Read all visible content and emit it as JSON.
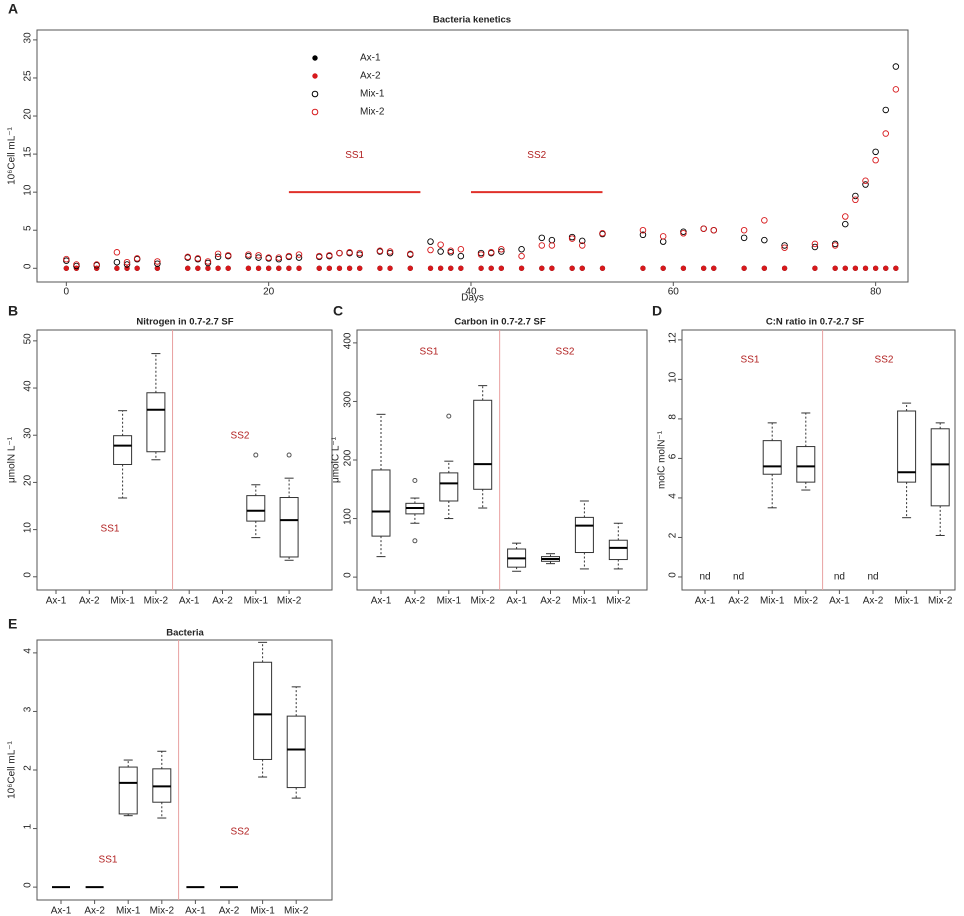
{
  "chart_data": [
    {
      "panel": "A",
      "type": "scatter",
      "title": "Bacteria kenetics",
      "xlabel": "Days",
      "ylabel": "10⁶Cell mL⁻¹",
      "x": [
        0,
        1,
        3,
        5,
        6,
        7,
        9,
        12,
        13,
        14,
        15,
        16,
        18,
        19,
        20,
        21,
        22,
        23,
        25,
        26,
        27,
        28,
        29,
        31,
        32,
        34,
        36,
        37,
        38,
        39,
        41,
        42,
        43,
        45,
        47,
        48,
        50,
        51,
        53,
        57,
        59,
        61,
        63,
        64,
        67,
        69,
        71,
        74,
        76,
        77,
        78,
        79,
        80,
        81,
        82
      ],
      "series": [
        {
          "name": "Ax-1",
          "color": "#000000",
          "marker": "filled",
          "values": [
            0,
            0,
            0,
            0,
            0,
            0,
            0,
            0,
            0,
            0,
            0,
            0,
            0,
            0,
            0,
            0,
            0,
            0,
            0,
            0,
            0,
            0,
            0,
            0,
            0,
            0,
            0,
            0,
            0,
            0,
            0,
            0,
            0,
            0,
            0,
            0,
            0,
            0,
            0,
            0,
            0,
            0,
            0,
            0,
            0,
            0,
            0,
            0,
            0,
            0,
            0,
            0,
            0,
            0,
            0
          ]
        },
        {
          "name": "Ax-2",
          "color": "#d7191c",
          "marker": "filled",
          "values": [
            0,
            0,
            0,
            0,
            0,
            0,
            0,
            0,
            0,
            0,
            0,
            0,
            0,
            0,
            0,
            0,
            0,
            0,
            0,
            0,
            0,
            0,
            0,
            0,
            0,
            0,
            0,
            0,
            0,
            0,
            0,
            0,
            0,
            0,
            0,
            0,
            0,
            0,
            0,
            0,
            0,
            0,
            0,
            0,
            0,
            0,
            0,
            0,
            0,
            0,
            0,
            0,
            0,
            0,
            0
          ]
        },
        {
          "name": "Mix-1",
          "color": "#000000",
          "marker": "open",
          "values": [
            1.0,
            0.3,
            0.4,
            0.8,
            0.5,
            1.2,
            0.6,
            1.4,
            1.2,
            0.7,
            1.5,
            1.6,
            1.6,
            1.4,
            1.3,
            1.2,
            1.5,
            1.4,
            1.5,
            1.6,
            2.0,
            2.0,
            1.8,
            2.2,
            2.0,
            1.8,
            3.5,
            2.2,
            2.1,
            1.6,
            2.0,
            2.0,
            2.2,
            2.5,
            4.0,
            3.7,
            4.1,
            3.6,
            4.5,
            4.4,
            3.5,
            4.8,
            5.2,
            5.0,
            4.0,
            3.7,
            3.0,
            2.8,
            3.2,
            5.8,
            9.5,
            11.0,
            15.3,
            20.8,
            26.5
          ]
        },
        {
          "name": "Mix-2",
          "color": "#d7191c",
          "marker": "open",
          "values": [
            1.2,
            0.5,
            0.5,
            2.1,
            0.8,
            1.3,
            0.9,
            1.5,
            1.3,
            0.9,
            1.9,
            1.7,
            1.8,
            1.7,
            1.4,
            1.4,
            1.6,
            1.8,
            1.6,
            1.7,
            2.0,
            2.1,
            2.0,
            2.3,
            2.2,
            1.9,
            2.4,
            3.1,
            2.3,
            2.5,
            1.8,
            2.1,
            2.5,
            1.6,
            3.0,
            3.0,
            3.9,
            3.0,
            4.6,
            5.0,
            4.2,
            4.6,
            5.2,
            5.0,
            5.0,
            6.3,
            2.7,
            3.2,
            3.0,
            6.8,
            9.0,
            11.5,
            14.2,
            17.7,
            23.5
          ]
        }
      ],
      "periods": [
        {
          "label": "SS1",
          "start": 22,
          "end": 35,
          "y": 10,
          "color": "#e0302a"
        },
        {
          "label": "SS2",
          "start": 40,
          "end": 53,
          "y": 10,
          "color": "#e0302a"
        }
      ],
      "xlim": [
        -2.9,
        83.2
      ],
      "xticks": [
        0,
        20,
        40,
        60,
        80
      ],
      "ylim": [
        -1.8,
        31.3
      ],
      "yticks": [
        0,
        5,
        10,
        15,
        20,
        25,
        30
      ]
    },
    {
      "panel": "B",
      "type": "box",
      "title": "Nitrogen in 0.7-2.7 SF",
      "ylabel": "μmolN L⁻¹",
      "categories": [
        "Ax-1",
        "Ax-2",
        "Mix-1",
        "Mix-2",
        "Ax-1",
        "Ax-2",
        "Mix-1",
        "Mix-2"
      ],
      "groups": [
        "SS1",
        "SS2"
      ],
      "boxes": [
        null,
        null,
        {
          "min": 16.7,
          "q1": 23.8,
          "median": 27.8,
          "q3": 29.9,
          "max": 35.2
        },
        {
          "min": 24.8,
          "q1": 26.5,
          "median": 35.4,
          "q3": 39.0,
          "max": 47.3
        },
        null,
        null,
        {
          "min": 8.3,
          "q1": 11.8,
          "median": 14.0,
          "q3": 17.2,
          "max": 19.5,
          "outliers": [
            25.8
          ]
        },
        {
          "min": 3.5,
          "q1": 4.2,
          "median": 12.0,
          "q3": 16.8,
          "max": 20.9,
          "outliers": [
            25.8
          ]
        }
      ],
      "ylim": [
        -2.8,
        52.3
      ],
      "yticks": [
        0,
        10,
        20,
        30,
        40,
        50
      ]
    },
    {
      "panel": "C",
      "type": "box",
      "title": "Carbon in 0.7-2.7 SF",
      "ylabel": "μmolC L⁻¹",
      "categories": [
        "Ax-1",
        "Ax-2",
        "Mix-1",
        "Mix-2",
        "Ax-1",
        "Ax-2",
        "Mix-1",
        "Mix-2"
      ],
      "groups": [
        "SS1",
        "SS2"
      ],
      "boxes": [
        {
          "min": 35,
          "q1": 70,
          "median": 112,
          "q3": 183,
          "max": 278
        },
        {
          "min": 92,
          "q1": 108,
          "median": 118,
          "q3": 126,
          "max": 135,
          "outliers": [
            62,
            165
          ]
        },
        {
          "min": 100,
          "q1": 130,
          "median": 160,
          "q3": 178,
          "max": 198,
          "outliers": [
            275
          ]
        },
        {
          "min": 118,
          "q1": 150,
          "median": 193,
          "q3": 302,
          "max": 327
        },
        {
          "min": 10,
          "q1": 17,
          "median": 32,
          "q3": 48,
          "max": 58
        },
        {
          "min": 23,
          "q1": 27,
          "median": 31,
          "q3": 35,
          "max": 40
        },
        {
          "min": 14,
          "q1": 42,
          "median": 88,
          "q3": 102,
          "max": 130
        },
        {
          "min": 14,
          "q1": 30,
          "median": 50,
          "q3": 63,
          "max": 92
        }
      ],
      "ylim": [
        -22,
        422
      ],
      "yticks": [
        0,
        100,
        200,
        300,
        400
      ]
    },
    {
      "panel": "D",
      "type": "box",
      "title": "C:N ratio in 0.7-2.7 SF",
      "ylabel": "molC molN⁻¹",
      "categories": [
        "Ax-1",
        "Ax-2",
        "Mix-1",
        "Mix-2",
        "Ax-1",
        "Ax-2",
        "Mix-1",
        "Mix-2"
      ],
      "groups": [
        "SS1",
        "SS2"
      ],
      "na_label": "nd",
      "boxes": [
        null,
        null,
        {
          "min": 3.5,
          "q1": 5.2,
          "median": 5.6,
          "q3": 6.9,
          "max": 7.8
        },
        {
          "min": 4.4,
          "q1": 4.8,
          "median": 5.6,
          "q3": 6.6,
          "max": 8.3
        },
        null,
        null,
        {
          "min": 3.0,
          "q1": 4.8,
          "median": 5.3,
          "q3": 8.4,
          "max": 8.8
        },
        {
          "min": 2.1,
          "q1": 3.6,
          "median": 5.7,
          "q3": 7.5,
          "max": 7.8
        }
      ],
      "ylim": [
        -0.66,
        12.5
      ],
      "yticks": [
        0,
        2,
        4,
        6,
        8,
        10,
        12
      ]
    },
    {
      "panel": "E",
      "type": "box",
      "title": "Bacteria",
      "ylabel": "10⁶Cell mL⁻¹",
      "categories": [
        "Ax-1",
        "Ax-2",
        "Mix-1",
        "Mix-2",
        "Ax-1",
        "Ax-2",
        "Mix-1",
        "Mix-2"
      ],
      "groups": [
        "SS1",
        "SS2"
      ],
      "boxes": [
        {
          "min": 0,
          "q1": 0,
          "median": 0,
          "q3": 0,
          "max": 0
        },
        {
          "min": 0,
          "q1": 0,
          "median": 0,
          "q3": 0,
          "max": 0
        },
        {
          "min": 1.22,
          "q1": 1.25,
          "median": 1.78,
          "q3": 2.05,
          "max": 2.17
        },
        {
          "min": 1.18,
          "q1": 1.45,
          "median": 1.72,
          "q3": 2.02,
          "max": 2.32
        },
        {
          "min": 0,
          "q1": 0,
          "median": 0,
          "q3": 0,
          "max": 0
        },
        {
          "min": 0,
          "q1": 0,
          "median": 0,
          "q3": 0,
          "max": 0
        },
        {
          "min": 1.88,
          "q1": 2.18,
          "median": 2.95,
          "q3": 3.84,
          "max": 4.18
        },
        {
          "min": 1.52,
          "q1": 1.7,
          "median": 2.35,
          "q3": 2.92,
          "max": 3.42
        }
      ],
      "ylim": [
        -0.22,
        4.22
      ],
      "yticks": [
        0,
        1,
        2,
        3,
        4
      ]
    }
  ]
}
